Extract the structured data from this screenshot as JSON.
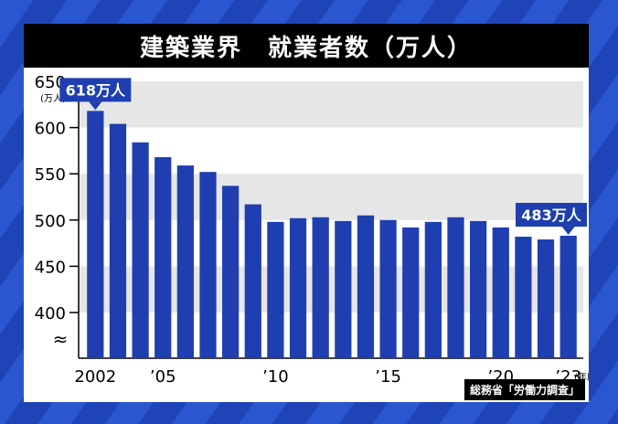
{
  "title": "建築業界　就業者数（万人）",
  "source": "総務省「労働力調査」",
  "chart_data": {
    "type": "bar",
    "categories": [
      "2002",
      "2003",
      "2004",
      "2005",
      "2006",
      "2007",
      "2008",
      "2009",
      "2010",
      "2011",
      "2012",
      "2013",
      "2014",
      "2015",
      "2016",
      "2017",
      "2018",
      "2019",
      "2020",
      "2021",
      "2022",
      "2023"
    ],
    "values": [
      618,
      604,
      584,
      568,
      559,
      552,
      537,
      517,
      498,
      502,
      503,
      499,
      505,
      500,
      492,
      498,
      503,
      499,
      492,
      482,
      479,
      483
    ],
    "tick_labels": [
      "2002",
      "’05",
      "’10",
      "’15",
      "’20",
      "’23"
    ],
    "tick_positions": [
      0,
      3,
      8,
      13,
      18,
      21
    ],
    "x_unit": "(年度)",
    "y_ticks": [
      400,
      450,
      500,
      550,
      600,
      650
    ],
    "y_unit": "(万人)",
    "ylim": [
      380,
      650
    ],
    "annotations": [
      {
        "index": 0,
        "text": "618万人"
      },
      {
        "index": 21,
        "text": "483万人"
      }
    ],
    "colors": {
      "bar": "#1f3fb0",
      "band": "#e6e6e6",
      "callout": "#1f3fb0"
    }
  }
}
